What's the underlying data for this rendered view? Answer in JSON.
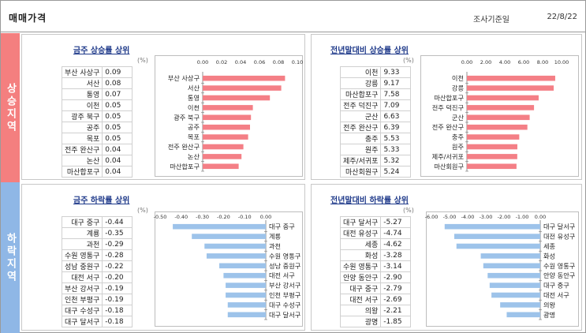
{
  "header": {
    "title": "매매가격",
    "survey_label": "조사기준일",
    "survey_date": "22/8/22"
  },
  "side": {
    "rise": "상승지역",
    "fall": "하락지역"
  },
  "colors": {
    "rise_bar": "#f47f86",
    "fall_bar": "#9dc3ea",
    "title": "#1f3a8a",
    "rise_side": "#f47f7f",
    "fall_side": "#8fb7e6"
  },
  "panels": {
    "weekly_rise": {
      "title": "금주 상승률 상위",
      "unit": "(%)"
    },
    "yoy_rise": {
      "title": "전년말대비 상승률 상위",
      "unit": "(%)"
    },
    "weekly_fall": {
      "title": "금주 하락률 상위",
      "unit": "(%)"
    },
    "yoy_fall": {
      "title": "전년말대비 하락률 상위",
      "unit": "(%)"
    }
  },
  "chart_data": [
    {
      "id": "weekly_rise",
      "type": "bar",
      "orientation": "horizontal",
      "categories": [
        "부산 사상구",
        "서산",
        "통영",
        "이천",
        "광주 북구",
        "공주",
        "목포",
        "전주 완산구",
        "논산",
        "마산합포구"
      ],
      "values": [
        0.09,
        0.08,
        0.07,
        0.05,
        0.05,
        0.05,
        0.05,
        0.04,
        0.04,
        0.04
      ],
      "value_labels": [
        "0.09",
        "0.08",
        "0.07",
        "0.05",
        "0.05",
        "0.05",
        "0.05",
        "0.04",
        "0.04",
        "0.04"
      ],
      "ticks": [
        "0.00",
        "0.02",
        "0.04",
        "0.06",
        "0.08",
        "0.10"
      ],
      "xlim": [
        0,
        0.1
      ],
      "bar_values": [
        0.087,
        0.083,
        0.071,
        0.053,
        0.051,
        0.05,
        0.048,
        0.043,
        0.041,
        0.038
      ]
    },
    {
      "id": "yoy_rise",
      "type": "bar",
      "orientation": "horizontal",
      "categories": [
        "이천",
        "강릉",
        "마산합포구",
        "전주 덕진구",
        "군산",
        "전주 완산구",
        "충주",
        "원주",
        "제주/서귀포",
        "마산회원구"
      ],
      "values": [
        9.33,
        9.17,
        7.58,
        7.09,
        6.63,
        6.39,
        5.53,
        5.33,
        5.32,
        5.24
      ],
      "value_labels": [
        "9.33",
        "9.17",
        "7.58",
        "7.09",
        "6.63",
        "6.39",
        "5.53",
        "5.33",
        "5.32",
        "5.24"
      ],
      "ticks": [
        "0.00",
        "2.00",
        "4.00",
        "6.00",
        "8.00",
        "10.00"
      ],
      "xlim": [
        0,
        10
      ]
    },
    {
      "id": "weekly_fall",
      "type": "bar",
      "orientation": "horizontal",
      "categories": [
        "대구 중구",
        "계룡",
        "과천",
        "수원 영통구",
        "성남 중원구",
        "대전 서구",
        "부산 강서구",
        "인천 부평구",
        "대구 수성구",
        "대구 달서구"
      ],
      "values": [
        -0.44,
        -0.35,
        -0.29,
        -0.28,
        -0.22,
        -0.2,
        -0.19,
        -0.19,
        -0.18,
        -0.18
      ],
      "value_labels": [
        "-0.44",
        "-0.35",
        "-0.29",
        "-0.28",
        "-0.22",
        "-0.20",
        "-0.19",
        "-0.19",
        "-0.18",
        "-0.18"
      ],
      "ticks": [
        "-0.50",
        "-0.40",
        "-0.30",
        "-0.20",
        "-0.10",
        "0.00"
      ],
      "xlim": [
        -0.5,
        0
      ]
    },
    {
      "id": "yoy_fall",
      "type": "bar",
      "orientation": "horizontal",
      "categories": [
        "대구 달서구",
        "대전 유성구",
        "세종",
        "화성",
        "수원 영통구",
        "안양 동안구",
        "대구 중구",
        "대전 서구",
        "의왕",
        "광명"
      ],
      "values": [
        -5.27,
        -4.74,
        -4.62,
        -3.28,
        -3.14,
        -2.9,
        -2.79,
        -2.69,
        -2.21,
        -1.85
      ],
      "value_labels": [
        "-5.27",
        "-4.74",
        "-4.62",
        "-3.28",
        "-3.14",
        "-2.90",
        "-2.79",
        "-2.69",
        "-2.21",
        "-1.85"
      ],
      "ticks": [
        "-6.00",
        "-5.00",
        "-4.00",
        "-3.00",
        "-2.00",
        "-1.00",
        "0.00"
      ],
      "xlim": [
        -6,
        0
      ]
    }
  ]
}
